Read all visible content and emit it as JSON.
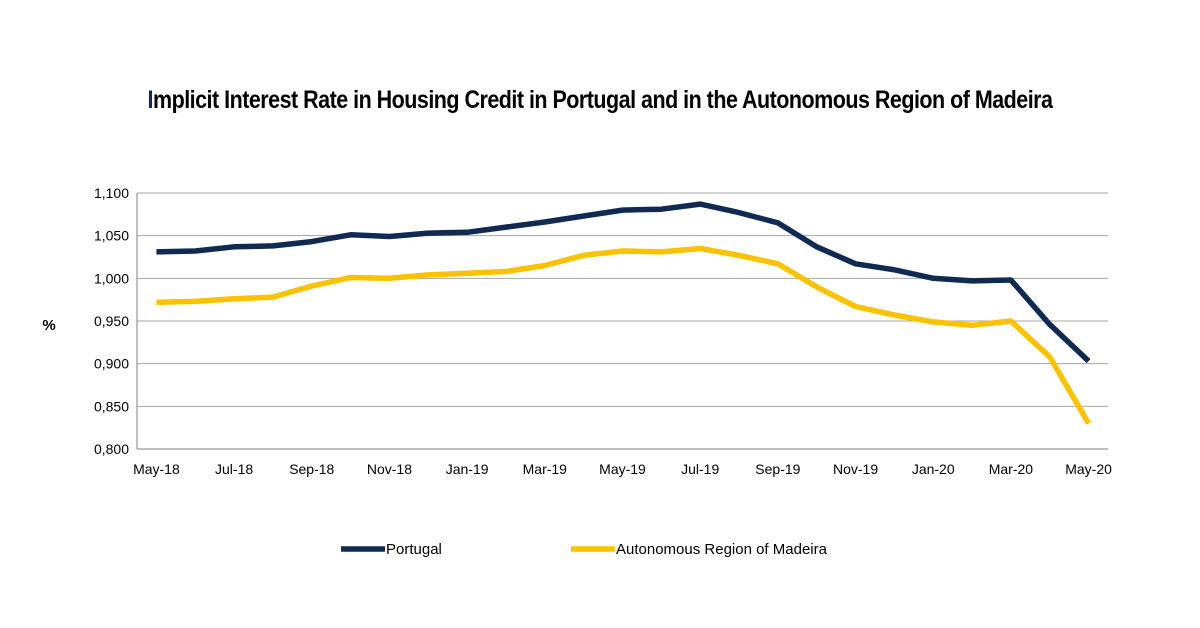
{
  "chart_data": {
    "type": "line",
    "title_first": "I",
    "title_rest": "mplicit Interest Rate in Housing Credit in Portugal and in the Autonomous Region of Madeira",
    "ylabel": "%",
    "ylim": [
      0.8,
      1.1
    ],
    "yticks": [
      {
        "value": 0.8,
        "label": "0,800"
      },
      {
        "value": 0.85,
        "label": "0,850"
      },
      {
        "value": 0.9,
        "label": "0,900"
      },
      {
        "value": 0.95,
        "label": "0,950"
      },
      {
        "value": 1.0,
        "label": "1,000"
      },
      {
        "value": 1.05,
        "label": "1,050"
      },
      {
        "value": 1.1,
        "label": "1,100"
      }
    ],
    "categories": [
      "May-18",
      "Jun-18",
      "Jul-18",
      "Aug-18",
      "Sep-18",
      "Oct-18",
      "Nov-18",
      "Dec-18",
      "Jan-19",
      "Feb-19",
      "Mar-19",
      "Apr-19",
      "May-19",
      "Jun-19",
      "Jul-19",
      "Aug-19",
      "Sep-19",
      "Oct-19",
      "Nov-19",
      "Dec-19",
      "Jan-20",
      "Feb-20",
      "Mar-20",
      "Apr-20",
      "May-20"
    ],
    "xtick_labels": [
      "May-18",
      "Jul-18",
      "Sep-18",
      "Nov-18",
      "Jan-19",
      "Mar-19",
      "May-19",
      "Jul-19",
      "Sep-19",
      "Nov-19",
      "Jan-20",
      "Mar-20",
      "May-20"
    ],
    "grid": true,
    "legend_position": "bottom",
    "series": [
      {
        "name": "Portugal",
        "color": "#102a54",
        "values": [
          1.031,
          1.032,
          1.037,
          1.038,
          1.043,
          1.051,
          1.049,
          1.053,
          1.054,
          1.06,
          1.066,
          1.073,
          1.08,
          1.081,
          1.087,
          1.077,
          1.065,
          1.037,
          1.017,
          1.01,
          1.0,
          0.997,
          0.998,
          0.946,
          0.903
        ]
      },
      {
        "name": "Autonomous Region of Madeira",
        "color": "#fcc200",
        "values": [
          0.972,
          0.973,
          0.976,
          0.978,
          0.991,
          1.001,
          1.0,
          1.004,
          1.006,
          1.008,
          1.015,
          1.027,
          1.032,
          1.031,
          1.035,
          1.027,
          1.017,
          0.99,
          0.967,
          0.957,
          0.949,
          0.945,
          0.95,
          0.908,
          0.83
        ]
      }
    ]
  }
}
